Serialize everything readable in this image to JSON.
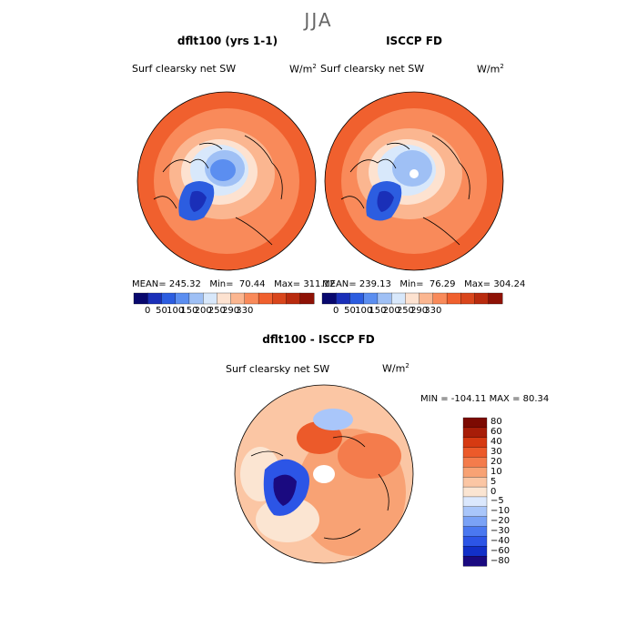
{
  "season": "JJA",
  "panels": [
    {
      "title": "dflt100 (yrs 1-1)",
      "variable": "Surf clearsky net SW",
      "units": "W/m",
      "units_sup": "2",
      "stats": {
        "mean_label": "MEAN=",
        "mean": "245.32",
        "min_label": "Min=",
        "min": "70.44",
        "max_label": "Max=",
        "max": "311.12"
      }
    },
    {
      "title": "ISCCP FD",
      "variable": "Surf clearsky net SW",
      "units": "W/m",
      "units_sup": "2",
      "stats": {
        "mean_label": "MEAN=",
        "mean": "239.13",
        "min_label": "Min=",
        "min": "76.29",
        "max_label": "Max=",
        "max": "304.24"
      }
    },
    {
      "title": "dflt100 - ISCCP FD",
      "variable": "Surf clearsky net SW",
      "units": "W/m",
      "units_sup": "2",
      "minmax": "MIN = -104.11  MAX =  80.34"
    }
  ],
  "colors": {
    "abs_scale": [
      "#08086e",
      "#1a2fb8",
      "#2c5de0",
      "#5b8ef0",
      "#9fc0f5",
      "#d8e8fb",
      "#fde2d0",
      "#fbb690",
      "#f98a5a",
      "#f0602e",
      "#d9461c",
      "#b92b0e",
      "#8e1206"
    ],
    "diff_scale": [
      "#1a0a80",
      "#1230c8",
      "#2c55e6",
      "#4a78f0",
      "#7aa2f6",
      "#a9c6fa",
      "#dbe8fd",
      "#fbe5d2",
      "#fbc6a4",
      "#f8a274",
      "#f47c4c",
      "#ec5a2a",
      "#d63a12",
      "#a71d08",
      "#7c0a02"
    ]
  },
  "chart_data": [
    {
      "type": "heatmap",
      "title": "dflt100 (yrs 1-1)",
      "projection": "north polar stereographic",
      "colorbar_ticks": [
        "0",
        "50",
        "100",
        "150",
        "200",
        "250",
        "290",
        "330"
      ],
      "mean": 245.32,
      "min": 70.44,
      "max": 311.12
    },
    {
      "type": "heatmap",
      "title": "ISCCP FD",
      "projection": "north polar stereographic",
      "colorbar_ticks": [
        "0",
        "50",
        "100",
        "150",
        "200",
        "250",
        "290",
        "330"
      ],
      "mean": 239.13,
      "min": 76.29,
      "max": 304.24
    },
    {
      "type": "heatmap",
      "title": "dflt100 - ISCCP FD",
      "projection": "north polar stereographic",
      "colorbar_ticks": [
        "80",
        "60",
        "40",
        "30",
        "20",
        "10",
        "5",
        "0",
        "−5",
        "−10",
        "−20",
        "−30",
        "−40",
        "−60",
        "−80"
      ],
      "min": -104.11,
      "max": 80.34
    }
  ]
}
